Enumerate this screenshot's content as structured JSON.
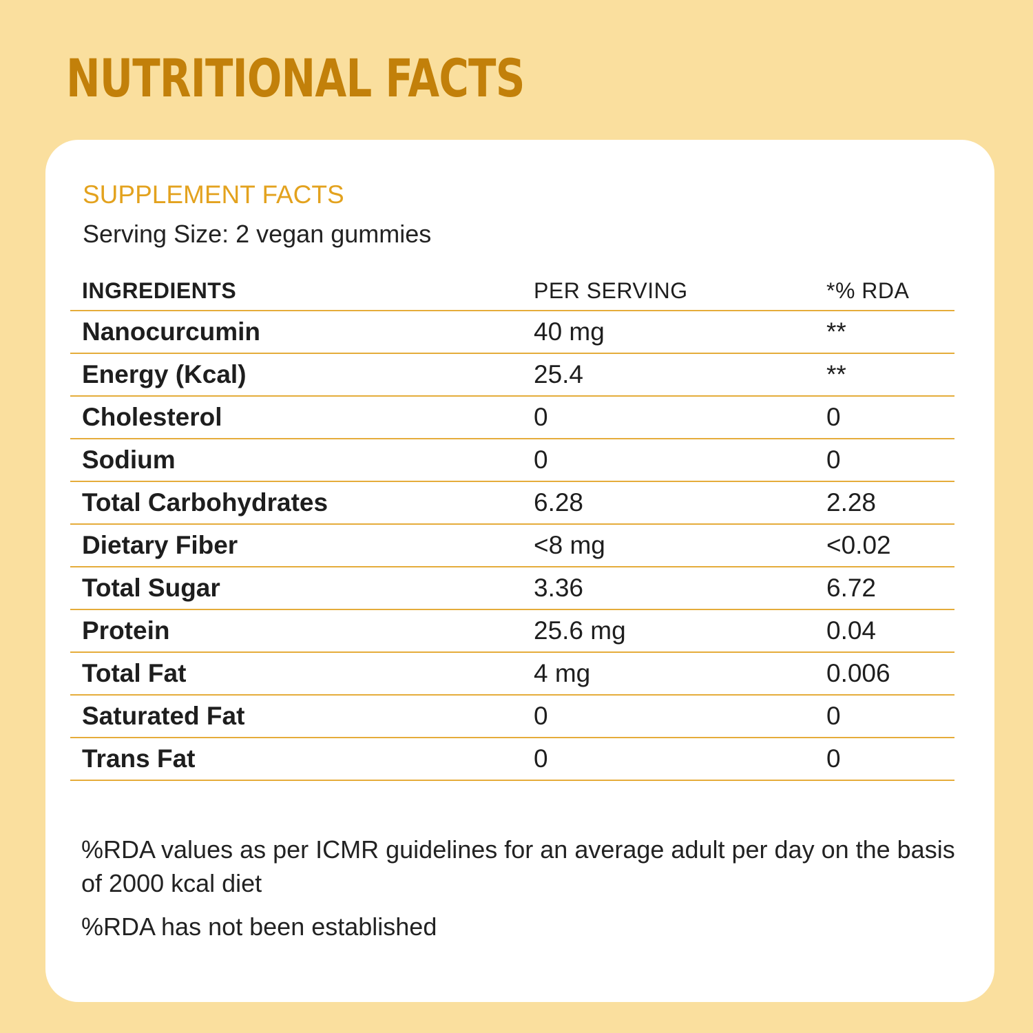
{
  "page": {
    "title": "NUTRITIONAL FACTS"
  },
  "card": {
    "facts_title": "SUPPLEMENT FACTS",
    "serving_size": "Serving Size: 2 vegan gummies"
  },
  "table": {
    "headers": [
      "INGREDIENTS",
      "PER SERVING",
      "*% RDA"
    ],
    "rows": [
      {
        "ingredient": "Nanocurcumin",
        "per_serving": "40 mg",
        "rda": "**"
      },
      {
        "ingredient": "Energy (Kcal)",
        "per_serving": "25.4",
        "rda": "**"
      },
      {
        "ingredient": "Cholesterol",
        "per_serving": "0",
        "rda": "0"
      },
      {
        "ingredient": "Sodium",
        "per_serving": "0",
        "rda": "0"
      },
      {
        "ingredient": "Total Carbohydrates",
        "per_serving": "6.28",
        "rda": "2.28"
      },
      {
        "ingredient": "Dietary Fiber",
        "per_serving": "<8 mg",
        "rda": "<0.02"
      },
      {
        "ingredient": "Total Sugar",
        "per_serving": "3.36",
        "rda": "6.72"
      },
      {
        "ingredient": "Protein",
        "per_serving": "25.6 mg",
        "rda": "0.04"
      },
      {
        "ingredient": "Total Fat",
        "per_serving": "4 mg",
        "rda": "0.006"
      },
      {
        "ingredient": "Saturated Fat",
        "per_serving": "0",
        "rda": "0"
      },
      {
        "ingredient": "Trans Fat",
        "per_serving": "0",
        "rda": "0"
      }
    ]
  },
  "footnotes": [
    "%RDA values as per ICMR guidelines for an average adult per day on the basis of 2000 kcal diet",
    "%RDA has not been established"
  ],
  "colors": {
    "background": "#FADF9E",
    "title": "#C2800A",
    "accent": "#E3A21E",
    "rule": "#E5AC3A",
    "card": "#FFFFFF",
    "text": "#1E1E1E"
  }
}
